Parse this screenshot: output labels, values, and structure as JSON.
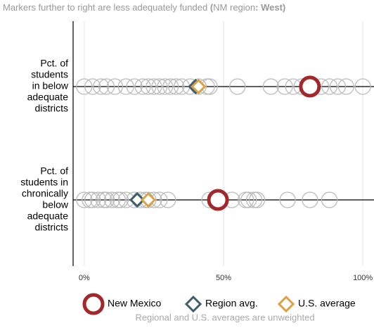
{
  "chart_data": {
    "type": "dot",
    "subtitle": [
      "Markers further to right are less adequately funded ",
      "(",
      "NM region",
      ": West)"
    ],
    "categories": [
      [
        "Pct. of",
        "students",
        "in below",
        "adequate",
        "districts"
      ],
      [
        "Pct. of",
        "students in",
        "chronically",
        "below",
        "adequate",
        "districts"
      ]
    ],
    "other_states": {
      "color": "#bbbbbb",
      "values": [
        [
          0,
          3,
          6,
          8,
          11,
          15,
          18,
          21,
          23,
          25,
          27,
          29,
          31,
          33,
          35,
          38,
          41,
          44,
          45,
          55,
          67,
          72,
          75,
          78,
          81,
          85,
          88,
          91,
          94,
          100
        ],
        [
          0,
          2,
          3,
          5,
          7,
          8,
          10,
          12,
          13,
          15,
          18,
          20,
          22,
          23,
          25,
          27,
          30,
          45,
          48,
          53,
          58,
          59,
          61,
          62,
          73,
          81,
          88
        ]
      ]
    },
    "series": [
      {
        "name": "New Mexico",
        "color": "#a3282b",
        "marker": "circle",
        "values": [
          81,
          48
        ]
      },
      {
        "name": "Region avg.",
        "color": "#3d5f6b",
        "marker": "diamond",
        "values": [
          40,
          19
        ]
      },
      {
        "name": "U.S. average",
        "color": "#dba145",
        "marker": "diamond",
        "values": [
          41,
          23
        ]
      }
    ],
    "xlim": [
      -4,
      104
    ],
    "xticks": [
      {
        "value": 0,
        "label": "0%"
      },
      {
        "value": 50,
        "label": "50%"
      },
      {
        "value": 100,
        "label": "100%"
      }
    ],
    "grid": true,
    "note": "Regional and U.S. averages are unweighted"
  }
}
